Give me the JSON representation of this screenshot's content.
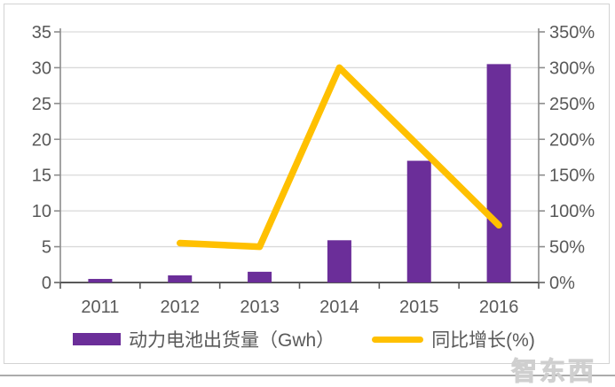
{
  "chart_data": {
    "type": "bar",
    "subtype": "bar-line-combo",
    "categories": [
      "2011",
      "2012",
      "2013",
      "2014",
      "2015",
      "2016"
    ],
    "series": [
      {
        "name": "动力电池出货量（Gwh）",
        "type": "bar",
        "axis": "left",
        "color": "#6B2E99",
        "values": [
          0.5,
          1,
          1.5,
          5.9,
          17,
          30.5
        ]
      },
      {
        "name": "同比增长(%)",
        "type": "line",
        "axis": "right",
        "color": "#FFC000",
        "values": [
          null,
          55,
          50,
          300,
          190,
          80
        ]
      }
    ],
    "left_axis": {
      "min": 0,
      "max": 35,
      "ticks": [
        0,
        5,
        10,
        15,
        20,
        25,
        30,
        35
      ],
      "suffix": ""
    },
    "right_axis": {
      "min": 0,
      "max": 350,
      "ticks": [
        0,
        50,
        100,
        150,
        200,
        250,
        300,
        350
      ],
      "suffix": "%"
    },
    "grid": true,
    "legend_position": "bottom",
    "title": ""
  },
  "colors": {
    "grid": "#d9d9d9",
    "axis": "#8c8c8c",
    "axis_dark": "#595959",
    "text": "#595959",
    "frame_border": "#d3d3d3",
    "separator": "#acacac"
  },
  "watermark": {
    "text": "智东西"
  }
}
